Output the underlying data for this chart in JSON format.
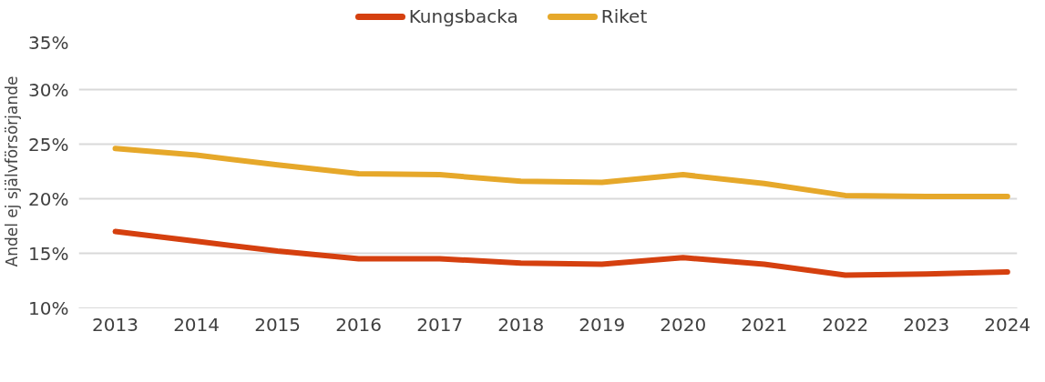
{
  "chart_data": {
    "type": "line",
    "ylabel": "Andel ej självförsörjande",
    "categories": [
      "2013",
      "2014",
      "2015",
      "2016",
      "2017",
      "2018",
      "2019",
      "2020",
      "2021",
      "2022",
      "2023",
      "2024"
    ],
    "series": [
      {
        "name": "Kungsbacka",
        "color": "#d5400f",
        "values": [
          17.0,
          16.1,
          15.2,
          14.5,
          14.5,
          14.1,
          14.0,
          14.6,
          14.0,
          13.0,
          13.1,
          13.3
        ]
      },
      {
        "name": "Riket",
        "color": "#e6a82a",
        "values": [
          24.6,
          24.0,
          23.1,
          22.3,
          22.2,
          21.6,
          21.5,
          22.2,
          21.4,
          20.3,
          20.2,
          20.2
        ]
      }
    ],
    "ylim": [
      10,
      35
    ],
    "yticks": [
      {
        "value": 10,
        "label": "10%"
      },
      {
        "value": 15,
        "label": "15%"
      },
      {
        "value": 20,
        "label": "20%"
      },
      {
        "value": 25,
        "label": "25%"
      },
      {
        "value": 30,
        "label": "30%"
      },
      {
        "value": 35,
        "label": "35%"
      }
    ],
    "grid": "y",
    "legend": "top",
    "marker": "none",
    "line_style": "solid"
  }
}
